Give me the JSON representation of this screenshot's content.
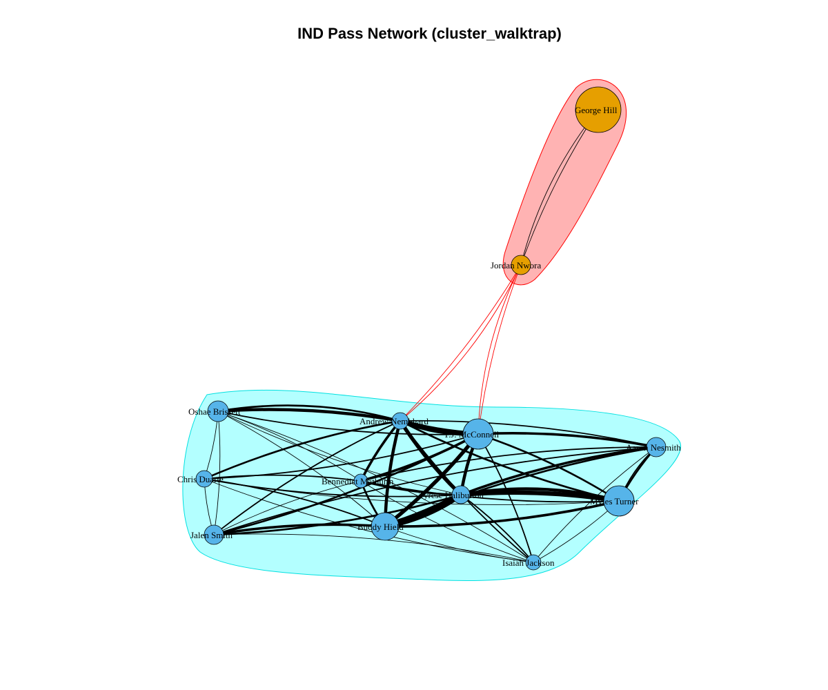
{
  "title": "IND Pass Network (cluster_walktrap)",
  "colors": {
    "background": "#ffffff",
    "cluster_1_fill": "#ffb3b3",
    "cluster_1_stroke": "#ff0000",
    "cluster_1_node": "#e69f00",
    "cluster_2_fill": "#b3ffff",
    "cluster_2_stroke": "#00e0e0",
    "cluster_2_node": "#56b4e9",
    "edge_within": "#000000",
    "edge_between": "#ff0000"
  },
  "nodes": [
    {
      "id": "george_hill",
      "label": "George Hill",
      "cluster": 1
    },
    {
      "id": "jordan_nwora",
      "label": "Jordan Nwora",
      "cluster": 1
    },
    {
      "id": "oshae_brissett",
      "label": "Oshae Brissett",
      "cluster": 2
    },
    {
      "id": "andrew_nembhard",
      "label": "Andrew Nembhard",
      "cluster": 2
    },
    {
      "id": "tj_mcconnell",
      "label": "T.J. McConnell",
      "cluster": 2
    },
    {
      "id": "aaron_nesmith",
      "label": "Aaron Nesmith",
      "cluster": 2
    },
    {
      "id": "chris_duarte",
      "label": "Chris Duarte",
      "cluster": 2
    },
    {
      "id": "bennedict_mathurin",
      "label": "Bennedict Mathurin",
      "cluster": 2
    },
    {
      "id": "tyrese_haliburton",
      "label": "Tyrese Haliburton",
      "cluster": 2
    },
    {
      "id": "myles_turner",
      "label": "Myles Turner",
      "cluster": 2
    },
    {
      "id": "jalen_smith",
      "label": "Jalen Smith",
      "cluster": 2
    },
    {
      "id": "buddy_hield",
      "label": "Buddy Hield",
      "cluster": 2
    },
    {
      "id": "isaiah_jackson",
      "label": "Isaiah Jackson",
      "cluster": 2
    }
  ],
  "edges": [
    {
      "source": "george_hill",
      "target": "jordan_nwora",
      "weight": 1
    },
    {
      "source": "jordan_nwora",
      "target": "george_hill",
      "weight": 1
    },
    {
      "source": "jordan_nwora",
      "target": "andrew_nembhard",
      "weight": 1
    },
    {
      "source": "andrew_nembhard",
      "target": "jordan_nwora",
      "weight": 1
    },
    {
      "source": "jordan_nwora",
      "target": "tj_mcconnell",
      "weight": 1
    },
    {
      "source": "tj_mcconnell",
      "target": "jordan_nwora",
      "weight": 1
    },
    {
      "source": "oshae_brissett",
      "target": "andrew_nembhard",
      "weight": 5
    },
    {
      "source": "andrew_nembhard",
      "target": "oshae_brissett",
      "weight": 3
    },
    {
      "source": "oshae_brissett",
      "target": "tj_mcconnell",
      "weight": 2
    },
    {
      "source": "oshae_brissett",
      "target": "bennedict_mathurin",
      "weight": 1
    },
    {
      "source": "oshae_brissett",
      "target": "tyrese_haliburton",
      "weight": 1
    },
    {
      "source": "oshae_brissett",
      "target": "buddy_hield",
      "weight": 1
    },
    {
      "source": "oshae_brissett",
      "target": "isaiah_jackson",
      "weight": 1
    },
    {
      "source": "oshae_brissett",
      "target": "chris_duarte",
      "weight": 1
    },
    {
      "source": "oshae_brissett",
      "target": "jalen_smith",
      "weight": 1
    },
    {
      "source": "andrew_nembhard",
      "target": "tj_mcconnell",
      "weight": 7
    },
    {
      "source": "tj_mcconnell",
      "target": "andrew_nembhard",
      "weight": 5
    },
    {
      "source": "andrew_nembhard",
      "target": "tyrese_haliburton",
      "weight": 6
    },
    {
      "source": "andrew_nembhard",
      "target": "buddy_hield",
      "weight": 5
    },
    {
      "source": "andrew_nembhard",
      "target": "bennedict_mathurin",
      "weight": 4
    },
    {
      "source": "andrew_nembhard",
      "target": "chris_duarte",
      "weight": 3
    },
    {
      "source": "andrew_nembhard",
      "target": "jalen_smith",
      "weight": 2
    },
    {
      "source": "andrew_nembhard",
      "target": "myles_turner",
      "weight": 3
    },
    {
      "source": "andrew_nembhard",
      "target": "aaron_nesmith",
      "weight": 2
    },
    {
      "source": "andrew_nembhard",
      "target": "isaiah_jackson",
      "weight": 2
    },
    {
      "source": "tj_mcconnell",
      "target": "aaron_nesmith",
      "weight": 4
    },
    {
      "source": "tj_mcconnell",
      "target": "myles_turner",
      "weight": 3
    },
    {
      "source": "tj_mcconnell",
      "target": "buddy_hield",
      "weight": 6
    },
    {
      "source": "tj_mcconnell",
      "target": "tyrese_haliburton",
      "weight": 5
    },
    {
      "source": "tj_mcconnell",
      "target": "bennedict_mathurin",
      "weight": 4
    },
    {
      "source": "tj_mcconnell",
      "target": "chris_duarte",
      "weight": 2
    },
    {
      "source": "tj_mcconnell",
      "target": "jalen_smith",
      "weight": 3
    },
    {
      "source": "tj_mcconnell",
      "target": "isaiah_jackson",
      "weight": 2
    },
    {
      "source": "tyrese_haliburton",
      "target": "buddy_hield",
      "weight": 10
    },
    {
      "source": "buddy_hield",
      "target": "tyrese_haliburton",
      "weight": 8
    },
    {
      "source": "tyrese_haliburton",
      "target": "myles_turner",
      "weight": 7
    },
    {
      "source": "myles_turner",
      "target": "tyrese_haliburton",
      "weight": 5
    },
    {
      "source": "tyrese_haliburton",
      "target": "aaron_nesmith",
      "weight": 4
    },
    {
      "source": "tyrese_haliburton",
      "target": "bennedict_mathurin",
      "weight": 3
    },
    {
      "source": "tyrese_haliburton",
      "target": "chris_duarte",
      "weight": 2
    },
    {
      "source": "tyrese_haliburton",
      "target": "jalen_smith",
      "weight": 3
    },
    {
      "source": "tyrese_haliburton",
      "target": "isaiah_jackson",
      "weight": 2
    },
    {
      "source": "buddy_hield",
      "target": "myles_turner",
      "weight": 4
    },
    {
      "source": "buddy_hield",
      "target": "aaron_nesmith",
      "weight": 3
    },
    {
      "source": "buddy_hield",
      "target": "jalen_smith",
      "weight": 4
    },
    {
      "source": "buddy_hield",
      "target": "chris_duarte",
      "weight": 2
    },
    {
      "source": "buddy_hield",
      "target": "bennedict_mathurin",
      "weight": 3
    },
    {
      "source": "buddy_hield",
      "target": "isaiah_jackson",
      "weight": 1
    },
    {
      "source": "myles_turner",
      "target": "aaron_nesmith",
      "weight": 3
    },
    {
      "source": "aaron_nesmith",
      "target": "myles_turner",
      "weight": 2
    },
    {
      "source": "myles_turner",
      "target": "bennedict_mathurin",
      "weight": 2
    },
    {
      "source": "myles_turner",
      "target": "isaiah_jackson",
      "weight": 1
    },
    {
      "source": "myles_turner",
      "target": "chris_duarte",
      "weight": 1
    },
    {
      "source": "aaron_nesmith",
      "target": "bennedict_mathurin",
      "weight": 2
    },
    {
      "source": "aaron_nesmith",
      "target": "jalen_smith",
      "weight": 2
    },
    {
      "source": "aaron_nesmith",
      "target": "isaiah_jackson",
      "weight": 1
    },
    {
      "source": "chris_duarte",
      "target": "bennedict_mathurin",
      "weight": 2
    },
    {
      "source": "chris_duarte",
      "target": "jalen_smith",
      "weight": 1
    },
    {
      "source": "chris_duarte",
      "target": "isaiah_jackson",
      "weight": 1
    },
    {
      "source": "jalen_smith",
      "target": "bennedict_mathurin",
      "weight": 1
    },
    {
      "source": "jalen_smith",
      "target": "isaiah_jackson",
      "weight": 1
    },
    {
      "source": "bennedict_mathurin",
      "target": "isaiah_jackson",
      "weight": 1
    }
  ]
}
